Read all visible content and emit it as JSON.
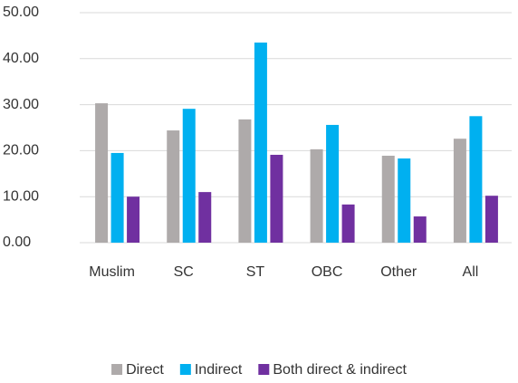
{
  "chart_data": {
    "type": "bar",
    "categories": [
      "Muslim",
      "SC",
      "ST",
      "OBC",
      "Other",
      "All"
    ],
    "series": [
      {
        "name": "Direct",
        "color": "#aeaaaa",
        "values": [
          30.3,
          24.4,
          26.8,
          20.3,
          18.9,
          22.6
        ]
      },
      {
        "name": "Indirect",
        "color": "#00b0f0",
        "values": [
          19.5,
          29.1,
          43.5,
          25.6,
          18.3,
          27.5
        ]
      },
      {
        "name": "Both direct & indirect",
        "color": "#7030a0",
        "values": [
          10.0,
          11.0,
          19.1,
          8.3,
          5.7,
          10.2
        ]
      }
    ],
    "ylim": [
      0,
      50
    ],
    "yticks": [
      {
        "value": 0,
        "label": "0.00"
      },
      {
        "value": 10,
        "label": "10.00"
      },
      {
        "value": 20,
        "label": "20.00"
      },
      {
        "value": 30,
        "label": "30.00"
      },
      {
        "value": 40,
        "label": "40.00"
      },
      {
        "value": 50,
        "label": "50.00"
      }
    ],
    "grid": true,
    "legend": "bottom"
  }
}
